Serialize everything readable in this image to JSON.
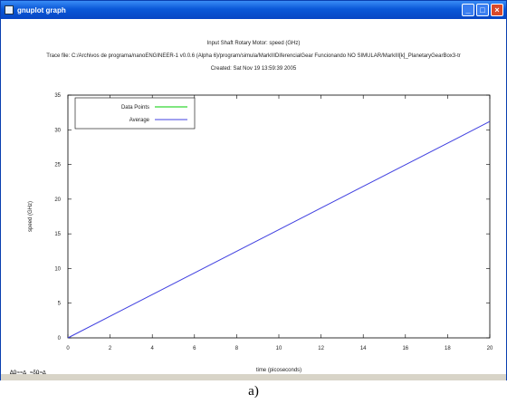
{
  "window": {
    "title": "gnuplot graph",
    "minimize_label": "_",
    "maximize_label": "□",
    "close_label": "×"
  },
  "header": {
    "line1": "Input Shaft Rotary Motor: speed (GHz)",
    "line2": "Trace file: C:/Archivos de programa/nanoENGINEER-1 v0.0.6 (Alpha 6)/program/simula/MarkIIIDiferencialGear Funcionando NO SIMULAR/MarkIII[k]_PlanetaryGearBox3-tr",
    "line3": "Created: Sat Nov 19 13:59:39 2005"
  },
  "status_text": "ΔΩ≈≈∆ ≈δΩ≈∆",
  "caption": "a)",
  "chart_data": {
    "type": "line",
    "xlabel": "time  (picoseconds)",
    "ylabel": "speed (GHz)",
    "xlim": [
      0,
      20
    ],
    "ylim": [
      0,
      35
    ],
    "xticks": [
      "0",
      "2",
      "4",
      "6",
      "8",
      "10",
      "12",
      "14",
      "16",
      "18",
      "20"
    ],
    "yticks": [
      "0",
      "5",
      "10",
      "15",
      "20",
      "25",
      "30",
      "35"
    ],
    "legend_position": "top-left",
    "series": [
      {
        "name": "Data Points",
        "color": "#00cc00",
        "x": [],
        "y": []
      },
      {
        "name": "Average",
        "color": "#4040e0",
        "x": [
          0,
          20
        ],
        "y": [
          0,
          31.2
        ]
      }
    ]
  }
}
